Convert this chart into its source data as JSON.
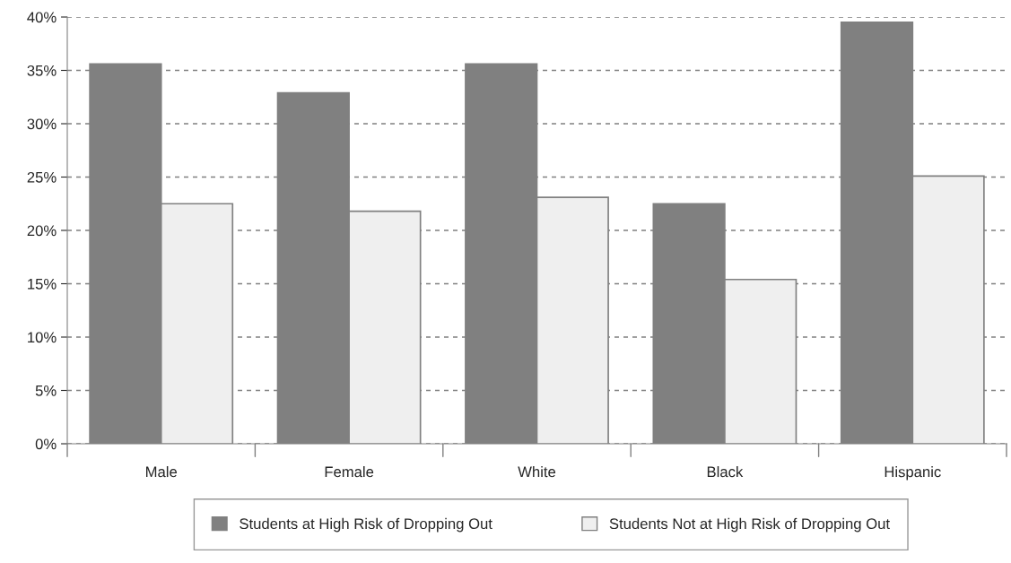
{
  "chart_data": {
    "type": "bar",
    "categories": [
      "Male",
      "Female",
      "White",
      "Black",
      "Hispanic"
    ],
    "series": [
      {
        "name": "Students at High Risk of Dropping Out",
        "color": "#808080",
        "values": [
          35.6,
          32.9,
          35.6,
          22.5,
          39.5
        ]
      },
      {
        "name": "Students Not at High Risk of Dropping Out",
        "color": "#efefef",
        "values": [
          22.5,
          21.8,
          23.1,
          15.4,
          25.1
        ]
      }
    ],
    "ylim": [
      0,
      40
    ],
    "yticks": [
      {
        "value": 0,
        "label": "0%"
      },
      {
        "value": 5,
        "label": "5%"
      },
      {
        "value": 10,
        "label": "10%"
      },
      {
        "value": 15,
        "label": "15%"
      },
      {
        "value": 20,
        "label": "20%"
      },
      {
        "value": 25,
        "label": "25%"
      },
      {
        "value": 30,
        "label": "30%"
      },
      {
        "value": 35,
        "label": "35%"
      },
      {
        "value": 40,
        "label": "40%"
      }
    ],
    "grid": "y",
    "legend": "bottom"
  }
}
